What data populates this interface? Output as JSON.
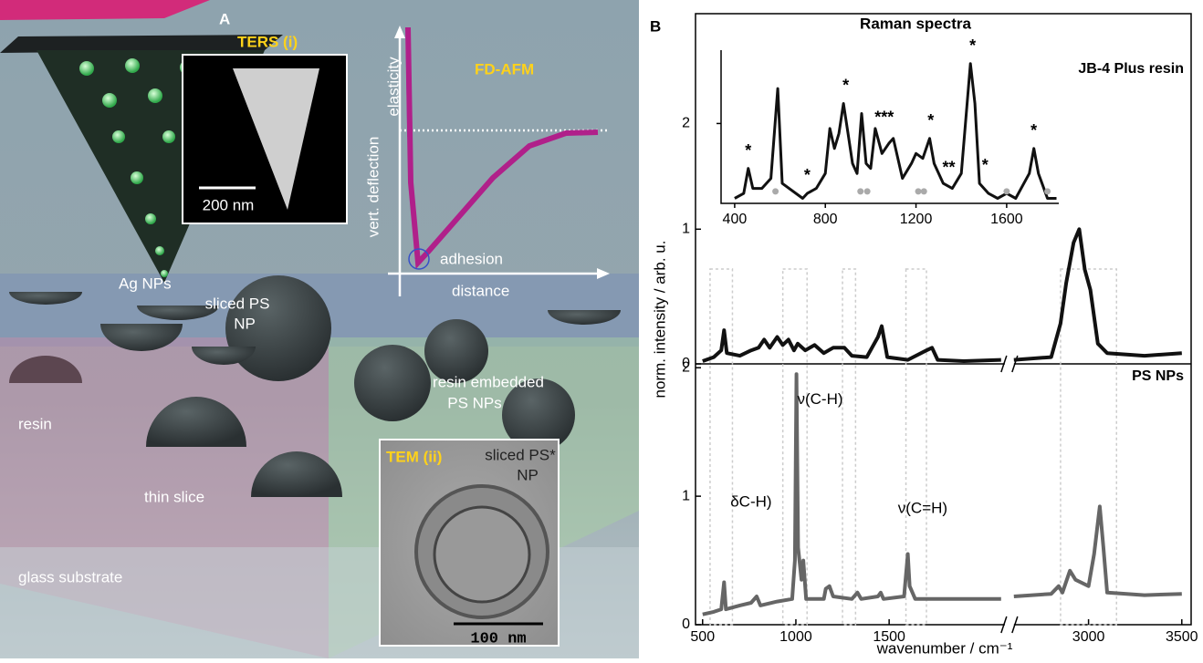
{
  "panel_a": {
    "letter": "A",
    "ters": "TERS (i)",
    "scale_ters": "200 nm",
    "fd_afm": "FD-AFM",
    "elasticity": "elasticity",
    "vert_deflection": "vert. deflection",
    "adhesion": "adhesion",
    "distance": "distance",
    "ag_nps": "Ag NPs",
    "sliced_ps_np": [
      "sliced PS",
      "NP"
    ],
    "resin_embedded": [
      "resin embedded",
      "PS NPs"
    ],
    "resin": "resin",
    "thin_slice": "thin slice",
    "glass_substrate": "glass substrate",
    "tem": "TEM (ii)",
    "sliced_ps_star": [
      "sliced PS*",
      "NP"
    ],
    "scale_tem": "100 nm"
  },
  "chart_data": {
    "type": "line",
    "letter": "B",
    "title": "Raman spectra",
    "xlabel": "wavenumber / cm⁻¹",
    "ylabel": "norm. intensity / arb. u.",
    "xlim": [
      462,
      3550
    ],
    "xbreak": [
      2120,
      2600
    ],
    "xticks": [
      500,
      1000,
      1500,
      3000,
      3500
    ],
    "highlight_regions": [
      [
        540,
        660
      ],
      [
        930,
        1060
      ],
      [
        1250,
        1320
      ],
      [
        1590,
        1700
      ],
      [
        2850,
        3150
      ]
    ],
    "panels": [
      {
        "ylim": [
          0,
          2.6
        ],
        "yticks": [
          0,
          1
        ],
        "series": [
          {
            "name": "JB-4 Plus resin",
            "color": "#111111",
            "x": [
              500,
              560,
              600,
              615,
              630,
              700,
              760,
              800,
              830,
              860,
              900,
              930,
              960,
              990,
              1010,
              1050,
              1100,
              1150,
              1200,
              1260,
              1300,
              1380,
              1440,
              1460,
              1490,
              1600,
              1700,
              1730,
              1760,
              1900,
              2100,
              2300,
              2600,
              2800,
              2850,
              2880,
              2920,
              2950,
              2980,
              3010,
              3050,
              3100,
              3300,
              3500
            ],
            "values": [
              0.02,
              0.05,
              0.1,
              0.25,
              0.08,
              0.06,
              0.1,
              0.12,
              0.18,
              0.12,
              0.2,
              0.14,
              0.18,
              0.1,
              0.15,
              0.1,
              0.14,
              0.08,
              0.12,
              0.12,
              0.06,
              0.05,
              0.2,
              0.28,
              0.05,
              0.03,
              0.1,
              0.12,
              0.03,
              0.02,
              0.03,
              null,
              0.03,
              0.05,
              0.3,
              0.6,
              0.9,
              1.0,
              0.7,
              0.55,
              0.15,
              0.08,
              0.06,
              0.08
            ]
          }
        ],
        "annotations": []
      },
      {
        "ylim": [
          0,
          2.03
        ],
        "yticks": [
          0,
          1,
          2
        ],
        "series": [
          {
            "name": "PS NPs",
            "color": "#666666",
            "x": [
              500,
              560,
              600,
              615,
              625,
              700,
              760,
              790,
              810,
              900,
              980,
              995,
              1003,
              1012,
              1030,
              1040,
              1055,
              1150,
              1160,
              1180,
              1200,
              1300,
              1330,
              1350,
              1440,
              1455,
              1470,
              1580,
              1600,
              1610,
              1640,
              1800,
              2000,
              2100,
              2300,
              2600,
              2800,
              2840,
              2860,
              2900,
              2930,
              3000,
              3030,
              3060,
              3080,
              3100,
              3300,
              3500
            ],
            "values": [
              0.08,
              0.1,
              0.12,
              0.33,
              0.12,
              0.15,
              0.17,
              0.22,
              0.15,
              0.18,
              0.2,
              0.5,
              1.95,
              0.6,
              0.35,
              0.5,
              0.2,
              0.2,
              0.28,
              0.3,
              0.22,
              0.2,
              0.25,
              0.2,
              0.22,
              0.25,
              0.2,
              0.22,
              0.55,
              0.3,
              0.2,
              0.2,
              0.2,
              0.2,
              null,
              0.22,
              0.24,
              0.3,
              0.25,
              0.42,
              0.35,
              0.3,
              0.55,
              0.92,
              0.6,
              0.25,
              0.23,
              0.24
            ]
          }
        ],
        "annotations": [
          {
            "text": "ν(C-H)",
            "x": 1130,
            "y": 1.75
          },
          {
            "text": "δC-H)",
            "x": 760,
            "y": 0.95
          },
          {
            "text": "ν(C=H)",
            "x": 1680,
            "y": 0.9
          }
        ]
      }
    ],
    "inset": {
      "xlim": [
        340,
        1830
      ],
      "xticks": [
        400,
        800,
        1200,
        1600
      ],
      "ylim": [
        1.2,
        3.1
      ],
      "yticks": [
        2
      ],
      "color": "#111111",
      "x": [
        400,
        440,
        460,
        480,
        520,
        560,
        590,
        610,
        700,
        720,
        760,
        800,
        820,
        840,
        860,
        880,
        900,
        920,
        940,
        960,
        980,
        1000,
        1020,
        1050,
        1080,
        1100,
        1140,
        1180,
        1200,
        1230,
        1260,
        1280,
        1320,
        1360,
        1400,
        1440,
        1460,
        1480,
        1520,
        1560,
        1600,
        1640,
        1700,
        1720,
        1740,
        1780,
        1820
      ],
      "values": [
        1.25,
        1.3,
        1.55,
        1.35,
        1.35,
        1.45,
        2.35,
        1.4,
        1.25,
        1.3,
        1.35,
        1.5,
        1.95,
        1.75,
        1.9,
        2.2,
        1.9,
        1.6,
        1.5,
        2.1,
        1.6,
        1.55,
        1.95,
        1.7,
        1.8,
        1.85,
        1.45,
        1.6,
        1.7,
        1.65,
        1.85,
        1.6,
        1.4,
        1.35,
        1.5,
        2.6,
        2.2,
        1.4,
        1.3,
        1.25,
        1.3,
        1.25,
        1.5,
        1.75,
        1.5,
        1.25,
        1.25
      ],
      "annotations": [
        {
          "text": "*",
          "x": 460,
          "y": 1.72
        },
        {
          "text": "*",
          "x": 720,
          "y": 1.47
        },
        {
          "text": "*",
          "x": 890,
          "y": 2.37
        },
        {
          "text": "***",
          "x": 1060,
          "y": 2.05
        },
        {
          "text": "*",
          "x": 1265,
          "y": 2.02
        },
        {
          "text": "**",
          "x": 1345,
          "y": 1.55
        },
        {
          "text": "*",
          "x": 1450,
          "y": 2.77
        },
        {
          "text": "*",
          "x": 1505,
          "y": 1.57
        },
        {
          "text": "*",
          "x": 1720,
          "y": 1.92
        }
      ],
      "markers": {
        "color": "#aaaaaa",
        "x": [
          580,
          955,
          985,
          1210,
          1235,
          1600,
          1780
        ],
        "y": [
          1.32,
          1.32,
          1.32,
          1.32,
          1.32,
          1.32,
          1.32
        ]
      }
    }
  }
}
